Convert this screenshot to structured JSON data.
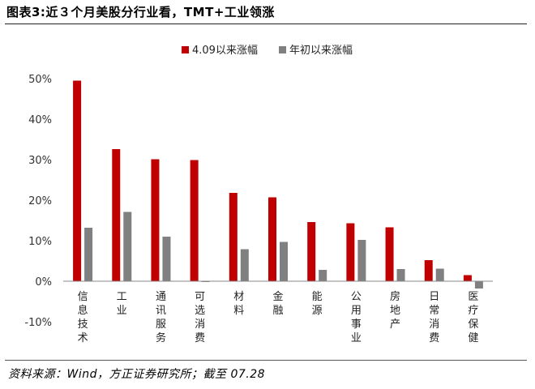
{
  "figure": {
    "title": "图表3:近３个月美股分行业看，TMT+工业领涨",
    "source": "资料来源：Wind，方正证券研究所；截至 07.28"
  },
  "colors": {
    "series1": "#c00000",
    "series2": "#808080",
    "axis": "#888888"
  },
  "chart_data": {
    "type": "bar",
    "title": "",
    "xlabel": "",
    "ylabel": "",
    "ylim": [
      -10,
      50
    ],
    "yticks": [
      -10,
      0,
      10,
      20,
      30,
      40,
      50
    ],
    "ytick_labels": [
      "-10%",
      "0%",
      "10%",
      "20%",
      "30%",
      "40%",
      "50%"
    ],
    "grid": false,
    "legend_position": "top",
    "categories": [
      "信息技术",
      "工业",
      "通讯服务",
      "可选消费",
      "材料",
      "金融",
      "能源",
      "公用事业",
      "房地产",
      "日常消费",
      "医疗保健"
    ],
    "series": [
      {
        "name": "4.09以来涨幅",
        "values": [
          49.5,
          32.6,
          30.1,
          29.9,
          21.8,
          20.7,
          14.6,
          14.3,
          13.3,
          5.2,
          1.5
        ]
      },
      {
        "name": "年初以来涨幅",
        "values": [
          13.2,
          17.1,
          11.0,
          -0.2,
          7.9,
          9.7,
          2.8,
          10.2,
          3.0,
          3.1,
          -1.8
        ]
      }
    ]
  }
}
